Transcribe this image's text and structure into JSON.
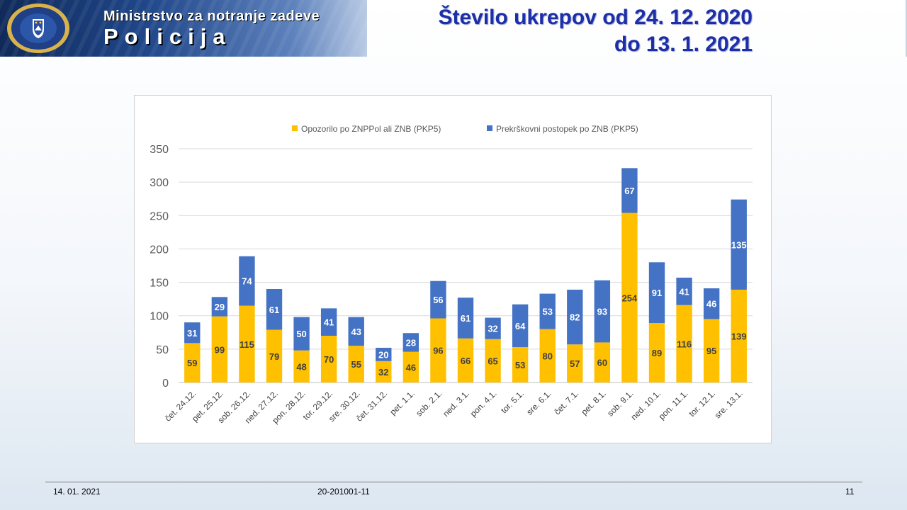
{
  "header": {
    "ministry": "Ministrstvo za notranje zadeve",
    "brand": "Policija",
    "title_line1": "Število ukrepov od 24. 12. 2020",
    "title_line2": "do 13. 1. 2021"
  },
  "footer": {
    "date": "14. 01. 2021",
    "code": "20-201001-11",
    "page": "11"
  },
  "colors": {
    "warning": "#ffc000",
    "offence": "#4472c4",
    "title": "#1d2fa8"
  },
  "chart_data": {
    "type": "bar",
    "stacked": true,
    "categories": [
      "čet. 24.12.",
      "pet. 25.12.",
      "sob. 26.12.",
      "ned. 27.12.",
      "pon. 28.12.",
      "tor. 29.12.",
      "sre. 30.12.",
      "čet. 31.12.",
      "pet. 1.1.",
      "sob. 2.1.",
      "ned. 3.1.",
      "pon. 4.1.",
      "tor. 5.1.",
      "sre. 6.1.",
      "čet. 7.1.",
      "pet. 8.1.",
      "sob. 9.1.",
      "ned. 10.1.",
      "pon. 11.1.",
      "tor. 12.1.",
      "sre. 13.1."
    ],
    "series": [
      {
        "name": "Opozorilo po ZNPPol ali ZNB (PKP5)",
        "color": "#ffc000",
        "values": [
          59,
          99,
          115,
          79,
          48,
          70,
          55,
          32,
          46,
          96,
          66,
          65,
          53,
          80,
          57,
          60,
          254,
          89,
          116,
          95,
          139
        ]
      },
      {
        "name": "Prekrškovni postopek po ZNB (PKP5)",
        "color": "#4472c4",
        "values": [
          31,
          29,
          74,
          61,
          50,
          41,
          43,
          20,
          28,
          56,
          61,
          32,
          64,
          53,
          82,
          93,
          67,
          91,
          41,
          46,
          135
        ]
      }
    ],
    "ylim": [
      0,
      350
    ],
    "yticks": [
      0,
      50,
      100,
      150,
      200,
      250,
      300,
      350
    ],
    "grid": true,
    "legend": "top-center"
  }
}
